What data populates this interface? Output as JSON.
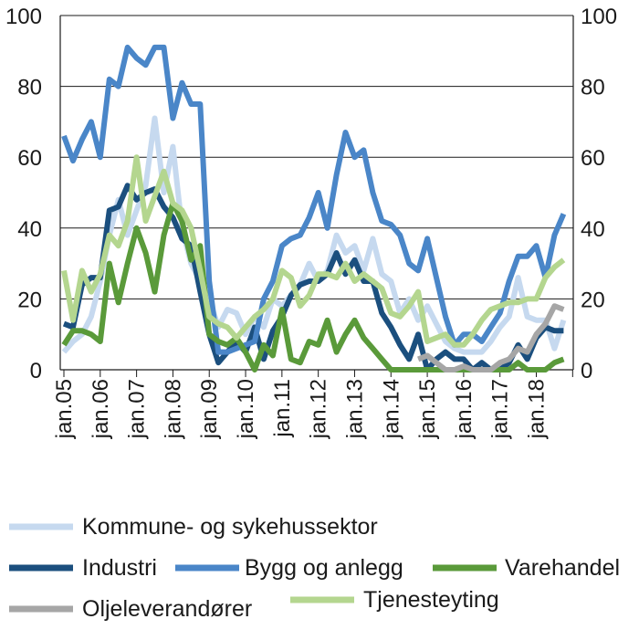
{
  "chart_data": {
    "type": "line",
    "ylim": [
      0,
      100
    ],
    "yticks": [
      0,
      20,
      40,
      60,
      80,
      100
    ],
    "y2ticks": [
      0,
      20,
      40,
      60,
      80,
      100
    ],
    "x_tick_labels": [
      "jan.05",
      "jan.06",
      "jan.07",
      "jan.08",
      "jan.09",
      "jan.10",
      "jan.11",
      "jan.12",
      "jan.13",
      "jan.14",
      "jan.15",
      "jan.16",
      "jan.17",
      "jan.18"
    ],
    "x_start": "2005-01",
    "x_end": "2018-12",
    "legend_position": "bottom",
    "grid": "horizontal",
    "series": [
      {
        "name": "Kommune- og sykehussektor",
        "color": "#c6d9ef",
        "points": [
          [
            "2005-01",
            5
          ],
          [
            "2005-04",
            8
          ],
          [
            "2005-07",
            10
          ],
          [
            "2005-10",
            15
          ],
          [
            "2006-01",
            25
          ],
          [
            "2006-04",
            38
          ],
          [
            "2006-07",
            48
          ],
          [
            "2006-10",
            38
          ],
          [
            "2007-01",
            45
          ],
          [
            "2007-04",
            52
          ],
          [
            "2007-07",
            71
          ],
          [
            "2007-10",
            50
          ],
          [
            "2008-01",
            63
          ],
          [
            "2008-04",
            40
          ],
          [
            "2008-07",
            30
          ],
          [
            "2008-10",
            25
          ],
          [
            "2009-01",
            20
          ],
          [
            "2009-04",
            12
          ],
          [
            "2009-07",
            17
          ],
          [
            "2009-10",
            16
          ],
          [
            "2010-01",
            10
          ],
          [
            "2010-04",
            15
          ],
          [
            "2010-07",
            12
          ],
          [
            "2010-10",
            20
          ],
          [
            "2011-01",
            18
          ],
          [
            "2011-04",
            21
          ],
          [
            "2011-07",
            24
          ],
          [
            "2011-10",
            30
          ],
          [
            "2012-01",
            25
          ],
          [
            "2012-04",
            28
          ],
          [
            "2012-07",
            38
          ],
          [
            "2012-10",
            33
          ],
          [
            "2013-01",
            35
          ],
          [
            "2013-04",
            28
          ],
          [
            "2013-07",
            37
          ],
          [
            "2013-10",
            27
          ],
          [
            "2014-01",
            25
          ],
          [
            "2014-04",
            16
          ],
          [
            "2014-07",
            20
          ],
          [
            "2014-10",
            14
          ],
          [
            "2015-01",
            18
          ],
          [
            "2015-04",
            13
          ],
          [
            "2015-07",
            8
          ],
          [
            "2015-10",
            6
          ],
          [
            "2016-01",
            5
          ],
          [
            "2016-04",
            5
          ],
          [
            "2016-07",
            5
          ],
          [
            "2016-10",
            8
          ],
          [
            "2017-01",
            12
          ],
          [
            "2017-04",
            15
          ],
          [
            "2017-07",
            26
          ],
          [
            "2017-10",
            15
          ],
          [
            "2018-01",
            14
          ],
          [
            "2018-04",
            14
          ],
          [
            "2018-07",
            6
          ],
          [
            "2018-10",
            14
          ]
        ]
      },
      {
        "name": "Industri",
        "color": "#1b4f7e",
        "points": [
          [
            "2005-01",
            13
          ],
          [
            "2005-04",
            12
          ],
          [
            "2005-07",
            24
          ],
          [
            "2005-10",
            26
          ],
          [
            "2006-01",
            26
          ],
          [
            "2006-04",
            45
          ],
          [
            "2006-07",
            46
          ],
          [
            "2006-10",
            52
          ],
          [
            "2007-01",
            48
          ],
          [
            "2007-04",
            50
          ],
          [
            "2007-07",
            51
          ],
          [
            "2007-10",
            46
          ],
          [
            "2008-01",
            43
          ],
          [
            "2008-04",
            37
          ],
          [
            "2008-07",
            35
          ],
          [
            "2008-10",
            22
          ],
          [
            "2009-01",
            10
          ],
          [
            "2009-04",
            2
          ],
          [
            "2009-07",
            5
          ],
          [
            "2009-10",
            8
          ],
          [
            "2010-01",
            5
          ],
          [
            "2010-04",
            12
          ],
          [
            "2010-07",
            3
          ],
          [
            "2010-10",
            11
          ],
          [
            "2011-01",
            15
          ],
          [
            "2011-04",
            21
          ],
          [
            "2011-07",
            24
          ],
          [
            "2011-10",
            25
          ],
          [
            "2012-01",
            25
          ],
          [
            "2012-04",
            27
          ],
          [
            "2012-07",
            33
          ],
          [
            "2012-10",
            27
          ],
          [
            "2013-01",
            31
          ],
          [
            "2013-04",
            25
          ],
          [
            "2013-07",
            25
          ],
          [
            "2013-10",
            16
          ],
          [
            "2014-01",
            12
          ],
          [
            "2014-04",
            7
          ],
          [
            "2014-07",
            3
          ],
          [
            "2014-10",
            10
          ],
          [
            "2015-01",
            0
          ],
          [
            "2015-04",
            3
          ],
          [
            "2015-07",
            5
          ],
          [
            "2015-10",
            3
          ],
          [
            "2016-01",
            3
          ],
          [
            "2016-04",
            0
          ],
          [
            "2016-07",
            2
          ],
          [
            "2016-10",
            0
          ],
          [
            "2017-01",
            0
          ],
          [
            "2017-04",
            2
          ],
          [
            "2017-07",
            7
          ],
          [
            "2017-10",
            3
          ],
          [
            "2018-01",
            9
          ],
          [
            "2018-04",
            12
          ],
          [
            "2018-07",
            11
          ],
          [
            "2018-10",
            11
          ]
        ]
      },
      {
        "name": "Bygg og anlegg",
        "color": "#4a86c8",
        "points": [
          [
            "2005-01",
            66
          ],
          [
            "2005-04",
            59
          ],
          [
            "2005-07",
            65
          ],
          [
            "2005-10",
            70
          ],
          [
            "2006-01",
            60
          ],
          [
            "2006-04",
            82
          ],
          [
            "2006-07",
            80
          ],
          [
            "2006-10",
            91
          ],
          [
            "2007-01",
            88
          ],
          [
            "2007-04",
            86
          ],
          [
            "2007-07",
            91
          ],
          [
            "2007-10",
            91
          ],
          [
            "2008-01",
            71
          ],
          [
            "2008-04",
            81
          ],
          [
            "2008-07",
            75
          ],
          [
            "2008-10",
            75
          ],
          [
            "2009-01",
            25
          ],
          [
            "2009-04",
            5
          ],
          [
            "2009-07",
            5
          ],
          [
            "2009-10",
            6
          ],
          [
            "2010-01",
            7
          ],
          [
            "2010-04",
            8
          ],
          [
            "2010-07",
            20
          ],
          [
            "2010-10",
            25
          ],
          [
            "2011-01",
            35
          ],
          [
            "2011-04",
            37
          ],
          [
            "2011-07",
            38
          ],
          [
            "2011-10",
            43
          ],
          [
            "2012-01",
            50
          ],
          [
            "2012-04",
            40
          ],
          [
            "2012-07",
            55
          ],
          [
            "2012-10",
            67
          ],
          [
            "2013-01",
            60
          ],
          [
            "2013-04",
            62
          ],
          [
            "2013-07",
            50
          ],
          [
            "2013-10",
            42
          ],
          [
            "2014-01",
            41
          ],
          [
            "2014-04",
            38
          ],
          [
            "2014-07",
            30
          ],
          [
            "2014-10",
            28
          ],
          [
            "2015-01",
            37
          ],
          [
            "2015-04",
            26
          ],
          [
            "2015-07",
            15
          ],
          [
            "2015-10",
            7
          ],
          [
            "2016-01",
            10
          ],
          [
            "2016-04",
            10
          ],
          [
            "2016-07",
            8
          ],
          [
            "2016-10",
            12
          ],
          [
            "2017-01",
            16
          ],
          [
            "2017-04",
            25
          ],
          [
            "2017-07",
            32
          ],
          [
            "2017-10",
            32
          ],
          [
            "2018-01",
            35
          ],
          [
            "2018-04",
            26
          ],
          [
            "2018-07",
            38
          ],
          [
            "2018-10",
            44
          ]
        ]
      },
      {
        "name": "Varehandel",
        "color": "#5a9a3a",
        "points": [
          [
            "2005-01",
            7
          ],
          [
            "2005-04",
            11
          ],
          [
            "2005-07",
            11
          ],
          [
            "2005-10",
            10
          ],
          [
            "2006-01",
            8
          ],
          [
            "2006-04",
            30
          ],
          [
            "2006-07",
            19
          ],
          [
            "2006-10",
            30
          ],
          [
            "2007-01",
            40
          ],
          [
            "2007-04",
            33
          ],
          [
            "2007-07",
            22
          ],
          [
            "2007-10",
            38
          ],
          [
            "2008-01",
            47
          ],
          [
            "2008-04",
            42
          ],
          [
            "2008-07",
            31
          ],
          [
            "2008-10",
            35
          ],
          [
            "2009-01",
            10
          ],
          [
            "2009-04",
            8
          ],
          [
            "2009-07",
            7
          ],
          [
            "2009-10",
            9
          ],
          [
            "2010-01",
            5
          ],
          [
            "2010-04",
            0
          ],
          [
            "2010-07",
            7
          ],
          [
            "2010-10",
            4
          ],
          [
            "2011-01",
            17
          ],
          [
            "2011-04",
            3
          ],
          [
            "2011-07",
            2
          ],
          [
            "2011-10",
            8
          ],
          [
            "2012-01",
            7
          ],
          [
            "2012-04",
            14
          ],
          [
            "2012-07",
            5
          ],
          [
            "2012-10",
            10
          ],
          [
            "2013-01",
            14
          ],
          [
            "2013-04",
            9
          ],
          [
            "2013-07",
            6
          ],
          [
            "2013-10",
            3
          ],
          [
            "2014-01",
            0
          ],
          [
            "2014-04",
            0
          ],
          [
            "2014-07",
            0
          ],
          [
            "2014-10",
            0
          ],
          [
            "2015-01",
            0
          ],
          [
            "2015-04",
            0
          ],
          [
            "2015-07",
            0
          ],
          [
            "2015-10",
            0
          ],
          [
            "2016-01",
            0
          ],
          [
            "2016-04",
            0
          ],
          [
            "2016-07",
            0
          ],
          [
            "2016-10",
            0
          ],
          [
            "2017-01",
            0
          ],
          [
            "2017-04",
            0
          ],
          [
            "2017-07",
            2
          ],
          [
            "2017-10",
            0
          ],
          [
            "2018-01",
            0
          ],
          [
            "2018-04",
            0
          ],
          [
            "2018-07",
            2
          ],
          [
            "2018-10",
            3
          ]
        ]
      },
      {
        "name": "Oljeleverandører",
        "color": "#a6a6a6",
        "points": [
          [
            "2014-10",
            3
          ],
          [
            "2015-01",
            4
          ],
          [
            "2015-04",
            2
          ],
          [
            "2015-07",
            0
          ],
          [
            "2015-10",
            0
          ],
          [
            "2016-01",
            1
          ],
          [
            "2016-04",
            0
          ],
          [
            "2016-07",
            0
          ],
          [
            "2016-10",
            0
          ],
          [
            "2017-01",
            2
          ],
          [
            "2017-04",
            3
          ],
          [
            "2017-07",
            6
          ],
          [
            "2017-10",
            5
          ],
          [
            "2018-01",
            10
          ],
          [
            "2018-04",
            13
          ],
          [
            "2018-07",
            18
          ],
          [
            "2018-10",
            17
          ]
        ]
      },
      {
        "name": "Tjenesteyting",
        "color": "#b4d68f",
        "points": [
          [
            "2005-01",
            28
          ],
          [
            "2005-04",
            14
          ],
          [
            "2005-07",
            28
          ],
          [
            "2005-10",
            22
          ],
          [
            "2006-01",
            27
          ],
          [
            "2006-04",
            38
          ],
          [
            "2006-07",
            35
          ],
          [
            "2006-10",
            42
          ],
          [
            "2007-01",
            60
          ],
          [
            "2007-04",
            42
          ],
          [
            "2007-07",
            49
          ],
          [
            "2007-10",
            56
          ],
          [
            "2008-01",
            47
          ],
          [
            "2008-04",
            45
          ],
          [
            "2008-07",
            40
          ],
          [
            "2008-10",
            28
          ],
          [
            "2009-01",
            15
          ],
          [
            "2009-04",
            13
          ],
          [
            "2009-07",
            12
          ],
          [
            "2009-10",
            9
          ],
          [
            "2010-01",
            12
          ],
          [
            "2010-04",
            15
          ],
          [
            "2010-07",
            17
          ],
          [
            "2010-10",
            20
          ],
          [
            "2011-01",
            28
          ],
          [
            "2011-04",
            26
          ],
          [
            "2011-07",
            18
          ],
          [
            "2011-10",
            21
          ],
          [
            "2012-01",
            27
          ],
          [
            "2012-04",
            27
          ],
          [
            "2012-07",
            26
          ],
          [
            "2012-10",
            30
          ],
          [
            "2013-01",
            25
          ],
          [
            "2013-04",
            27
          ],
          [
            "2013-07",
            25
          ],
          [
            "2013-10",
            23
          ],
          [
            "2014-01",
            16
          ],
          [
            "2014-04",
            15
          ],
          [
            "2014-07",
            18
          ],
          [
            "2014-10",
            22
          ],
          [
            "2015-01",
            8
          ],
          [
            "2015-04",
            9
          ],
          [
            "2015-07",
            10
          ],
          [
            "2015-10",
            7
          ],
          [
            "2016-01",
            7
          ],
          [
            "2016-04",
            10
          ],
          [
            "2016-07",
            14
          ],
          [
            "2016-10",
            17
          ],
          [
            "2017-01",
            18
          ],
          [
            "2017-04",
            19
          ],
          [
            "2017-07",
            19
          ],
          [
            "2017-10",
            20
          ],
          [
            "2018-01",
            20
          ],
          [
            "2018-04",
            26
          ],
          [
            "2018-07",
            29
          ],
          [
            "2018-10",
            31
          ]
        ]
      }
    ]
  }
}
